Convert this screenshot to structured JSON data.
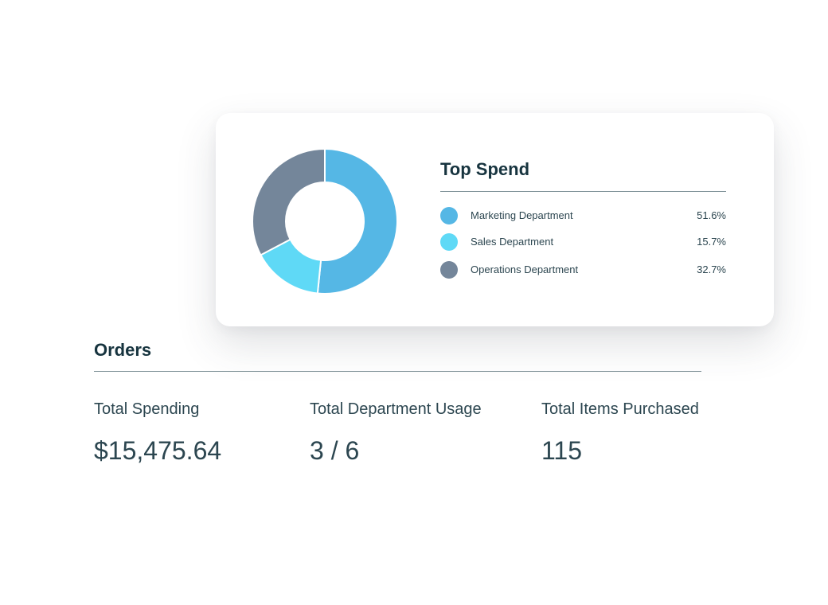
{
  "top_spend": {
    "title": "Top Spend",
    "items": [
      {
        "label": "Marketing Department",
        "value_text": "51.6%",
        "value": 51.6,
        "color": "#55b7e5"
      },
      {
        "label": "Sales Department",
        "value_text": "15.7%",
        "value": 15.7,
        "color": "#5fd9f6"
      },
      {
        "label": "Operations Department",
        "value_text": "32.7%",
        "value": 32.7,
        "color": "#74869a"
      }
    ]
  },
  "orders": {
    "title": "Orders",
    "stats": [
      {
        "label": "Total Spending",
        "value": "$15,475.64"
      },
      {
        "label": "Total Department Usage",
        "value": "3 / 6"
      },
      {
        "label": "Total Items Purchased",
        "value": "115"
      }
    ]
  },
  "chart_data": {
    "type": "pie",
    "variant": "donut",
    "categories": [
      "Marketing Department",
      "Sales Department",
      "Operations Department"
    ],
    "values": [
      51.6,
      15.7,
      32.7
    ],
    "colors": [
      "#55b7e5",
      "#5fd9f6",
      "#74869a"
    ],
    "title": "Top Spend",
    "legend": "right"
  }
}
